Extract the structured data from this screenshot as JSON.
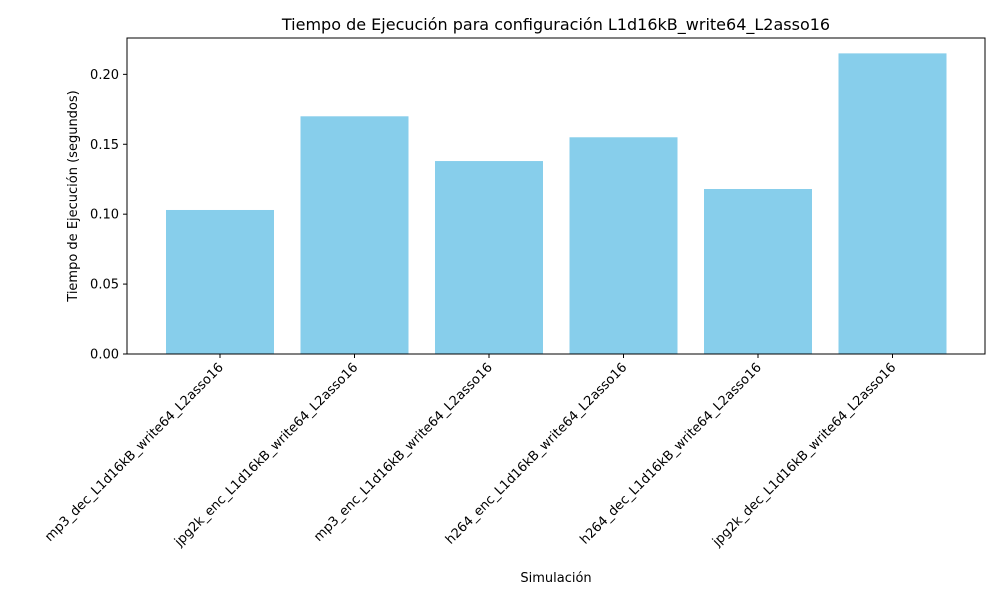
{
  "chart_data": {
    "type": "bar",
    "title": "Tiempo de Ejecución para configuración L1d16kB_write64_L2asso16",
    "xlabel": "Simulación",
    "ylabel": "Tiempo de Ejecución (segundos)",
    "categories": [
      "mp3_dec_L1d16kB_write64_L2asso16",
      "jpg2k_enc_L1d16kB_write64_L2asso16",
      "mp3_enc_L1d16kB_write64_L2asso16",
      "h264_enc_L1d16kB_write64_L2asso16",
      "h264_dec_L1d16kB_write64_L2asso16",
      "jpg2k_dec_L1d16kB_write64_L2asso16"
    ],
    "values": [
      0.103,
      0.17,
      0.138,
      0.155,
      0.118,
      0.215
    ],
    "ylim": [
      0,
      0.226
    ],
    "yticks": [
      0.0,
      0.05,
      0.1,
      0.15,
      0.2
    ],
    "ytick_labels": [
      "0.00",
      "0.05",
      "0.10",
      "0.15",
      "0.20"
    ],
    "bar_color": "#87ceeb",
    "grid": false
  }
}
